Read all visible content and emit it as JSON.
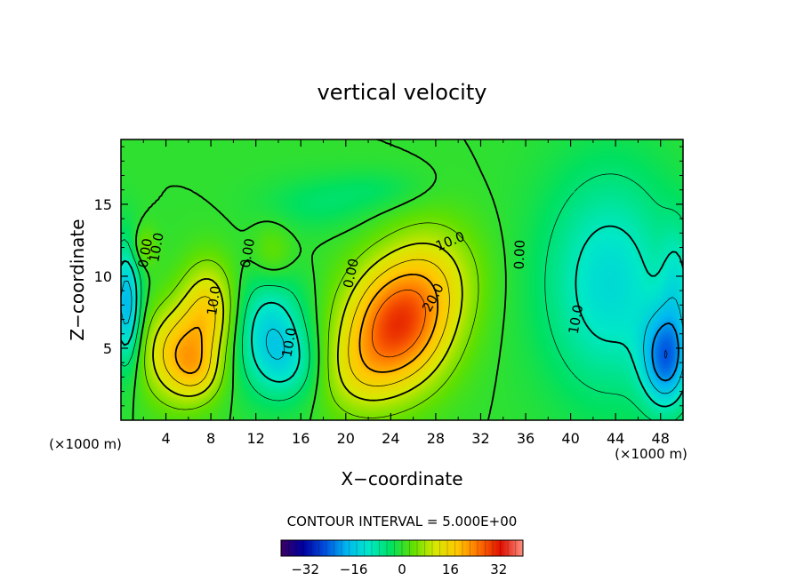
{
  "chart_data": {
    "type": "heatmap",
    "title": "vertical velocity",
    "xlabel": "X−coordinate",
    "ylabel": "Z−coordinate",
    "x_unit_left": "(×1000 m)",
    "x_unit_right": "(×1000 m)",
    "xlim": [
      0,
      50
    ],
    "ylim": [
      0,
      19.5
    ],
    "xticks": [
      "4",
      "8",
      "12",
      "16",
      "20",
      "24",
      "28",
      "32",
      "36",
      "40",
      "44",
      "48"
    ],
    "yticks": [
      "5",
      "10",
      "15"
    ],
    "contour_interval_label": "CONTOUR INTERVAL = 5.000E+00",
    "contour_labels": [
      "0.00",
      "0.00",
      "0.00",
      "0.00",
      "10.0",
      "10.0",
      "20.0",
      "10.0",
      "10.0",
      "10.0"
    ],
    "colorbar": {
      "range": [
        -40,
        40
      ],
      "ticks": [
        "−32",
        "−16",
        "0",
        "16",
        "32"
      ],
      "colors": [
        "#3c0060",
        "#0000a0",
        "#0050e0",
        "#00b8f0",
        "#00e8c8",
        "#00e060",
        "#60e000",
        "#d8e800",
        "#ffc800",
        "#ff7000",
        "#e01000",
        "#ff9080"
      ]
    },
    "blobs": [
      {
        "x": 24.5,
        "z": 6.5,
        "sx": 3.2,
        "sz": 3.0,
        "amp": 27
      },
      {
        "x": 27.8,
        "z": 10.0,
        "sx": 3.0,
        "sz": 2.8,
        "amp": 10
      },
      {
        "x": 21.0,
        "z": 3.2,
        "sx": 2.6,
        "sz": 2.2,
        "amp": 8
      },
      {
        "x": 5.2,
        "z": 4.6,
        "sx": 2.2,
        "sz": 2.3,
        "amp": 18
      },
      {
        "x": 7.8,
        "z": 7.8,
        "sx": 1.7,
        "sz": 2.3,
        "amp": 14
      },
      {
        "x": 7.0,
        "z": 3.2,
        "sx": 1.4,
        "sz": 1.3,
        "amp": 6
      },
      {
        "x": 13.3,
        "z": 6.0,
        "sx": 2.2,
        "sz": 2.8,
        "amp": -14
      },
      {
        "x": 15.5,
        "z": 3.8,
        "sx": 2.0,
        "sz": 1.8,
        "amp": -6
      },
      {
        "x": 43.5,
        "z": 9.5,
        "sx": 4.2,
        "sz": 5.5,
        "amp": -13
      },
      {
        "x": 48.5,
        "z": 4.2,
        "sx": 1.5,
        "sz": 2.4,
        "amp": -20
      },
      {
        "x": 49.5,
        "z": 9.5,
        "sx": 1.0,
        "sz": 3.0,
        "amp": -7
      },
      {
        "x": 0.5,
        "z": 8.0,
        "sx": 0.9,
        "sz": 3.0,
        "amp": -18
      },
      {
        "x": 2.0,
        "z": 12.0,
        "sx": 0.8,
        "sz": 1.0,
        "amp": 6
      },
      {
        "x": 13.5,
        "z": 11.5,
        "sx": 1.3,
        "sz": 1.5,
        "amp": 5
      },
      {
        "x": 17.5,
        "z": 15.0,
        "sx": 3.5,
        "sz": 1.3,
        "amp": -4
      },
      {
        "x": 23.0,
        "z": 16.0,
        "sx": 3.0,
        "sz": 1.0,
        "amp": -3
      }
    ]
  }
}
